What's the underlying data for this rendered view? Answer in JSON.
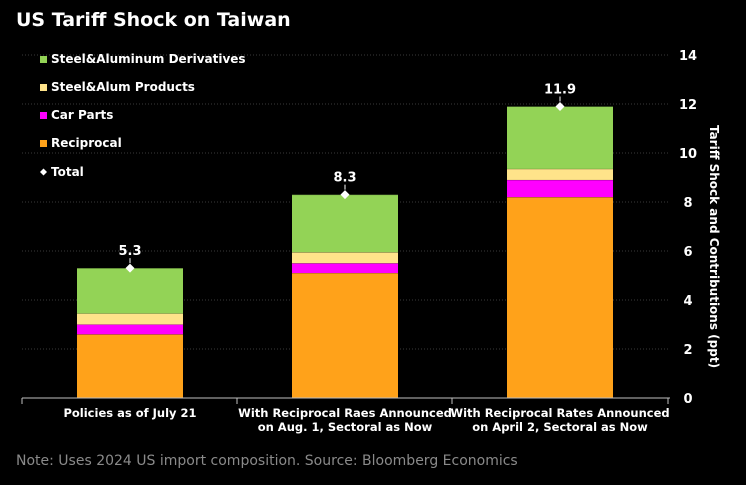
{
  "chart_data": {
    "type": "bar",
    "stacked": true,
    "title": "US Tariff Shock on Taiwan",
    "ylabel": "Tariff Shock and Contributions (ppt)",
    "xlabel": "",
    "ylim": [
      0,
      14
    ],
    "yticks": [
      "0",
      "2",
      "4",
      "6",
      "8",
      "10",
      "12",
      "14"
    ],
    "grid": true,
    "y_axis_position": "right",
    "legend_position": "top-left",
    "categories": [
      [
        "Policies as of July 21"
      ],
      [
        "With Reciprocal Raes Announced",
        "on Aug. 1, Sectoral as Now"
      ],
      [
        "With Reciprocal Rates Announced",
        "on April 2, Sectoral as Now"
      ]
    ],
    "series": [
      {
        "name": "Reciprocal",
        "color": "#FFA21A",
        "values": [
          2.6,
          5.1,
          8.2
        ]
      },
      {
        "name": "Car Parts",
        "color": "#FF00FF",
        "values": [
          0.4,
          0.4,
          0.7
        ]
      },
      {
        "name": "Steel&Alum Products",
        "color": "#FFE38A",
        "values": [
          0.45,
          0.45,
          0.45
        ]
      },
      {
        "name": "Steel&Aluminum Derivatives",
        "color": "#93D356",
        "values": [
          1.85,
          2.35,
          2.55
        ]
      }
    ],
    "legend_order": [
      "Steel&Aluminum Derivatives",
      "Steel&Alum Products",
      "Car Parts",
      "Reciprocal"
    ],
    "total": {
      "name": "Total",
      "marker_color": "#FFFFFF",
      "values": [
        5.3,
        8.3,
        11.9
      ],
      "labels": [
        "5.3",
        "8.3",
        "11.9"
      ]
    },
    "note": "Note: Uses 2024 US import composition. Source: Bloomberg Economics"
  },
  "colors": {
    "background": "#000000",
    "text": "#FFFFFF",
    "gridline": "#3A3A3A",
    "note": "#8A8A8A"
  }
}
